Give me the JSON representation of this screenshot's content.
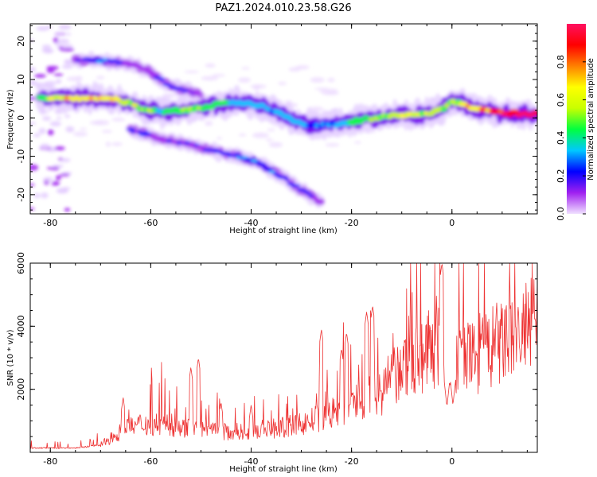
{
  "title": "PAZ1.2024.010.23.58.G26",
  "chart_data": [
    {
      "type": "heatmap",
      "xlabel": "Height of straight line (km)",
      "ylabel": "Frequency (Hz)",
      "xlim": [
        -84,
        17
      ],
      "ylim": [
        -25,
        24.5
      ],
      "xticks": [
        -80,
        -60,
        -40,
        -20,
        0
      ],
      "yticks": [
        -20,
        -10,
        0,
        10,
        20
      ],
      "colorbar": {
        "label": "Normalized spectral amplitude",
        "range": [
          0,
          1
        ],
        "ticks": [
          0.0,
          0.2,
          0.4,
          0.6,
          0.8
        ],
        "colors": [
          "#f0e0ff",
          "#a020f0",
          "#0000ff",
          "#00c8ff",
          "#00ff40",
          "#c8ff00",
          "#ffff00",
          "#ff8000",
          "#ff0000",
          "#ff1060"
        ]
      },
      "features": [
        {
          "name": "main",
          "points": [
            [
              -82,
              5.2
            ],
            [
              -78,
              5
            ],
            [
              -74,
              5
            ],
            [
              -70,
              5.2
            ],
            [
              -66,
              4.5
            ],
            [
              -62,
              2.6
            ],
            [
              -58,
              1.6
            ],
            [
              -54,
              2
            ],
            [
              -50,
              2.6
            ],
            [
              -46,
              3.6
            ],
            [
              -42,
              4
            ],
            [
              -38,
              3.2
            ],
            [
              -34,
              1
            ],
            [
              -30,
              -1.5
            ],
            [
              -26,
              -2
            ],
            [
              -22,
              -1.5
            ],
            [
              -18,
              -0.5
            ],
            [
              -14,
              0.2
            ],
            [
              -10,
              0.8
            ],
            [
              -6,
              0.8
            ],
            [
              -2,
              2.2
            ],
            [
              0,
              4.5
            ],
            [
              2,
              3.5
            ],
            [
              6,
              2
            ],
            [
              10,
              1.2
            ],
            [
              17,
              1
            ]
          ],
          "amp": [
            0.45,
            0.6,
            0.72,
            0.72,
            0.6,
            0.55,
            0.4,
            0.45,
            0.5,
            0.42,
            0.35,
            0.32,
            0.3,
            0.28,
            0.26,
            0.35,
            0.45,
            0.5,
            0.6,
            0.55,
            0.5,
            0.5,
            0.6,
            0.75,
            0.9,
            0.95
          ]
        },
        {
          "name": "lower-branch",
          "points": [
            [
              -64,
              -3
            ],
            [
              -58,
              -5.5
            ],
            [
              -52,
              -7
            ],
            [
              -46,
              -9
            ],
            [
              -40,
              -11
            ],
            [
              -36,
              -13.5
            ],
            [
              -32,
              -17
            ],
            [
              -28,
              -20.5
            ],
            [
              -26,
              -22
            ]
          ],
          "amp": [
            0.18,
            0.16,
            0.15,
            0.22,
            0.28,
            0.26,
            0.22,
            0.16,
            0.12
          ]
        },
        {
          "name": "upper-branch",
          "points": [
            [
              -75,
              15
            ],
            [
              -70,
              15
            ],
            [
              -64,
              14
            ],
            [
              -60,
              12
            ],
            [
              -57,
              9
            ],
            [
              -54,
              7.5
            ],
            [
              -50,
              6
            ]
          ],
          "amp": [
            0.14,
            0.3,
            0.12,
            0.14,
            0.24,
            0.2,
            0.15
          ]
        }
      ]
    },
    {
      "type": "line",
      "xlabel": "Height of straight line (km)",
      "ylabel": "SNR (10 * v/v)",
      "xlim": [
        -84,
        17
      ],
      "ylim": [
        0,
        6000
      ],
      "xticks": [
        -80,
        -60,
        -40,
        -20,
        0
      ],
      "yticks": [
        2000,
        4000,
        6000
      ],
      "series_color": "#ee3333",
      "envelope": [
        [
          -84,
          140
        ],
        [
          -75,
          140
        ],
        [
          -70,
          230
        ],
        [
          -66,
          650
        ],
        [
          -62,
          900
        ],
        [
          -58,
          900
        ],
        [
          -54,
          800
        ],
        [
          -50,
          700
        ],
        [
          -46,
          650
        ],
        [
          -42,
          660
        ],
        [
          -38,
          720
        ],
        [
          -34,
          780
        ],
        [
          -30,
          900
        ],
        [
          -26,
          1100
        ],
        [
          -22,
          1350
        ],
        [
          -18,
          1650
        ],
        [
          -14,
          2000
        ],
        [
          -10,
          2550
        ],
        [
          -8,
          2900
        ],
        [
          -5,
          3150
        ],
        [
          -2,
          3500
        ],
        [
          0,
          2900
        ],
        [
          4,
          3000
        ],
        [
          8,
          3300
        ],
        [
          12,
          3650
        ],
        [
          17,
          4000
        ]
      ],
      "peaks": [
        [
          -65.5,
          1750
        ],
        [
          -52,
          2700
        ],
        [
          -50.5,
          3000
        ],
        [
          -46,
          1600
        ],
        [
          -40,
          1500
        ],
        [
          -26,
          3900
        ],
        [
          -22,
          3300
        ],
        [
          -21,
          3800
        ],
        [
          -17,
          4450
        ],
        [
          -15.8,
          4650
        ],
        [
          -2,
          6000
        ],
        [
          2,
          3500
        ],
        [
          6,
          3700
        ]
      ],
      "dips": [
        [
          -1,
          1450
        ],
        [
          0.2,
          1500
        ]
      ]
    }
  ]
}
